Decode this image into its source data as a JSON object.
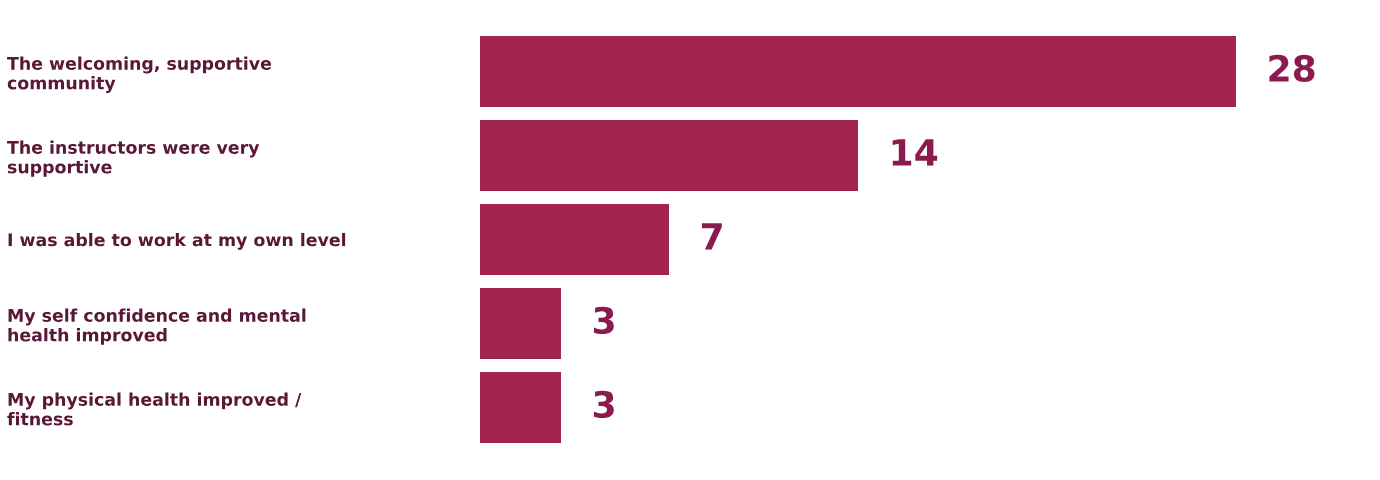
{
  "chart_data": {
    "type": "bar",
    "orientation": "horizontal",
    "categories": [
      "The welcoming, supportive\ncommunity",
      "The instructors were very\nsupportive",
      "I was able to work at my own level",
      "My self confidence and mental\nhealth improved",
      "My physical health improved /\nfitness"
    ],
    "values": [
      28,
      14,
      7,
      3,
      3
    ],
    "color": "#a3244f",
    "data_labels": true
  }
}
